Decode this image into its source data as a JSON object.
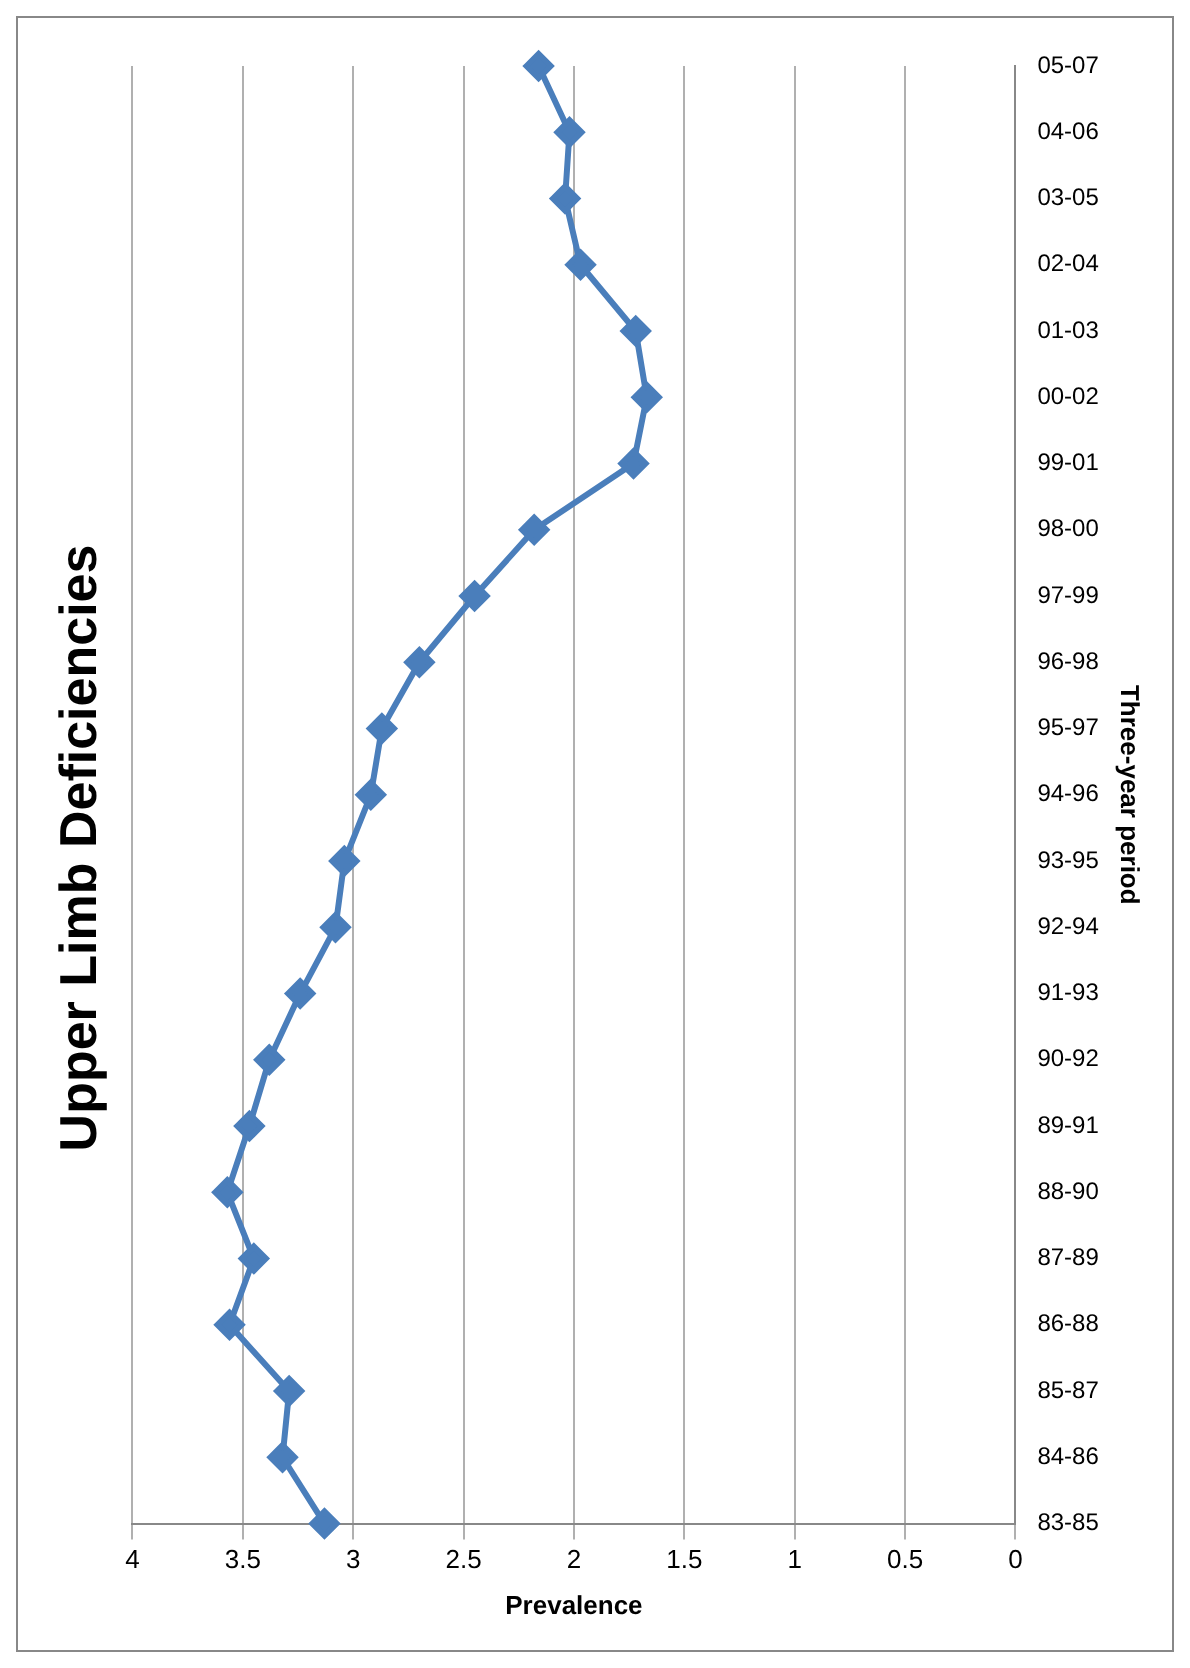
{
  "chart_data": {
    "type": "line",
    "orientation": "horizontal",
    "title": "Upper Limb Deficiencies",
    "xlabel": "Prevalence",
    "ylabel": "Three-year period",
    "categories": [
      "05-07",
      "04-06",
      "03-05",
      "02-04",
      "01-03",
      "00-02",
      "99-01",
      "98-00",
      "97-99",
      "96-98",
      "95-97",
      "94-96",
      "93-95",
      "92-94",
      "91-93",
      "90-92",
      "89-91",
      "88-90",
      "87-89",
      "86-88",
      "85-87",
      "84-86",
      "83-85"
    ],
    "series": [
      {
        "color": "#4a7ebb",
        "values": [
          2.16,
          2.02,
          2.04,
          1.97,
          1.72,
          1.67,
          1.73,
          2.18,
          2.45,
          2.7,
          2.87,
          2.92,
          3.04,
          3.08,
          3.24,
          3.38,
          3.47,
          3.57,
          3.45,
          3.56,
          3.29,
          3.32,
          3.13
        ]
      }
    ],
    "xlim": [
      4,
      0
    ],
    "xticks": [
      4,
      3.5,
      3,
      2.5,
      2,
      1.5,
      1,
      0.5,
      0
    ],
    "grid": "x",
    "legend": false,
    "marker": "diamond",
    "line_style": "solid"
  }
}
